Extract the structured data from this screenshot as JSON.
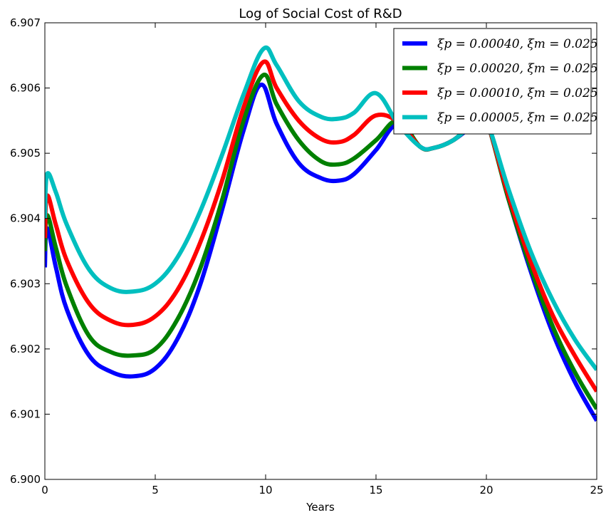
{
  "chart_data": {
    "type": "line",
    "title": "Log of Social Cost of R&D",
    "xlabel": "Years",
    "ylabel": "",
    "xlim": [
      0,
      25
    ],
    "ylim": [
      6.9,
      6.907
    ],
    "xticks": [
      0,
      5,
      10,
      15,
      20,
      25
    ],
    "xtick_labels": [
      "0",
      "5",
      "10",
      "15",
      "20",
      "25"
    ],
    "yticks": [
      6.9,
      6.901,
      6.902,
      6.903,
      6.904,
      6.905,
      6.906,
      6.907
    ],
    "ytick_labels": [
      "6.900",
      "6.901",
      "6.902",
      "6.903",
      "6.904",
      "6.905",
      "6.906",
      "6.907"
    ],
    "grid": false,
    "legend_position": "top-right",
    "series": [
      {
        "name": "ξp = 0.00040, ξm = 0.025",
        "color": "#0000ff",
        "points": [
          [
            0,
            6.90325
          ],
          [
            0.1,
            6.90385
          ],
          [
            0.5,
            6.90325
          ],
          [
            1,
            6.9026
          ],
          [
            2,
            6.9019
          ],
          [
            3,
            6.90165
          ],
          [
            4,
            6.90158
          ],
          [
            5,
            6.9017
          ],
          [
            6,
            6.90215
          ],
          [
            7,
            6.90295
          ],
          [
            8,
            6.9041
          ],
          [
            9,
            6.90535
          ],
          [
            9.8,
            6.90605
          ],
          [
            10.5,
            6.90545
          ],
          [
            11.5,
            6.90485
          ],
          [
            12.5,
            6.90462
          ],
          [
            13.3,
            6.90458
          ],
          [
            14,
            6.90468
          ],
          [
            15,
            6.90505
          ],
          [
            16,
            6.90545
          ],
          [
            17,
            6.9051
          ],
          [
            17.6,
            6.90508
          ],
          [
            18.5,
            6.9052
          ],
          [
            19.5,
            6.90545
          ],
          [
            20,
            6.9055
          ],
          [
            21,
            6.9043
          ],
          [
            22,
            6.9032
          ],
          [
            23,
            6.90225
          ],
          [
            24,
            6.9015
          ],
          [
            25,
            6.9009
          ]
        ]
      },
      {
        "name": "ξp = 0.00020, ξm = 0.025",
        "color": "#008000",
        "points": [
          [
            0,
            6.9035
          ],
          [
            0.1,
            6.90405
          ],
          [
            0.5,
            6.90355
          ],
          [
            1,
            6.90295
          ],
          [
            2,
            6.9022
          ],
          [
            3,
            6.90195
          ],
          [
            4,
            6.9019
          ],
          [
            5,
            6.902
          ],
          [
            6,
            6.90245
          ],
          [
            7,
            6.9032
          ],
          [
            8,
            6.90425
          ],
          [
            9,
            6.9055
          ],
          [
            9.9,
            6.9062
          ],
          [
            10.5,
            6.90575
          ],
          [
            11.5,
            6.9052
          ],
          [
            12.5,
            6.90488
          ],
          [
            13.3,
            6.90483
          ],
          [
            14,
            6.90492
          ],
          [
            15,
            6.9052
          ],
          [
            16,
            6.9055
          ],
          [
            17,
            6.9051
          ],
          [
            17.6,
            6.90508
          ],
          [
            18.5,
            6.9052
          ],
          [
            19.5,
            6.90548
          ],
          [
            20,
            6.9055
          ],
          [
            21,
            6.9043
          ],
          [
            22,
            6.90325
          ],
          [
            23,
            6.90235
          ],
          [
            24,
            6.90165
          ],
          [
            25,
            6.90108
          ]
        ]
      },
      {
        "name": "ξp = 0.00010, ξm = 0.025",
        "color": "#ff0000",
        "points": [
          [
            0,
            6.9037
          ],
          [
            0.1,
            6.90435
          ],
          [
            0.5,
            6.9039
          ],
          [
            1,
            6.90335
          ],
          [
            2,
            6.9027
          ],
          [
            3,
            6.90243
          ],
          [
            4,
            6.90237
          ],
          [
            5,
            6.9025
          ],
          [
            6,
            6.9029
          ],
          [
            7,
            6.9036
          ],
          [
            8,
            6.90455
          ],
          [
            9,
            6.9057
          ],
          [
            9.9,
            6.9064
          ],
          [
            10.5,
            6.906
          ],
          [
            11.5,
            6.9055
          ],
          [
            12.5,
            6.90522
          ],
          [
            13.3,
            6.90517
          ],
          [
            14,
            6.90528
          ],
          [
            15,
            6.90558
          ],
          [
            16,
            6.90548
          ],
          [
            17,
            6.9051
          ],
          [
            17.6,
            6.90508
          ],
          [
            18.5,
            6.9052
          ],
          [
            19.5,
            6.90548
          ],
          [
            20,
            6.9055
          ],
          [
            21,
            6.90435
          ],
          [
            22,
            6.90335
          ],
          [
            23,
            6.90252
          ],
          [
            24,
            6.9019
          ],
          [
            25,
            6.90135
          ]
        ]
      },
      {
        "name": "ξp = 0.00005, ξm = 0.025",
        "color": "#00bfbf",
        "points": [
          [
            0,
            6.904
          ],
          [
            0.1,
            6.90468
          ],
          [
            0.5,
            6.9044
          ],
          [
            1,
            6.9039
          ],
          [
            2,
            6.90322
          ],
          [
            3,
            6.90293
          ],
          [
            4,
            6.90288
          ],
          [
            5,
            6.903
          ],
          [
            6,
            6.9034
          ],
          [
            7,
            6.90408
          ],
          [
            8,
            6.90495
          ],
          [
            9,
            6.9059
          ],
          [
            9.9,
            6.9066
          ],
          [
            10.5,
            6.90635
          ],
          [
            11.5,
            6.9058
          ],
          [
            12.5,
            6.90556
          ],
          [
            13.3,
            6.90553
          ],
          [
            14,
            6.90562
          ],
          [
            15,
            6.90592
          ],
          [
            16,
            6.90545
          ],
          [
            17,
            6.9051
          ],
          [
            17.6,
            6.90508
          ],
          [
            18.5,
            6.9052
          ],
          [
            19.5,
            6.90548
          ],
          [
            20,
            6.9055
          ],
          [
            21,
            6.90445
          ],
          [
            22,
            6.9035
          ],
          [
            23,
            6.90275
          ],
          [
            24,
            6.90215
          ],
          [
            25,
            6.90168
          ]
        ]
      }
    ]
  }
}
